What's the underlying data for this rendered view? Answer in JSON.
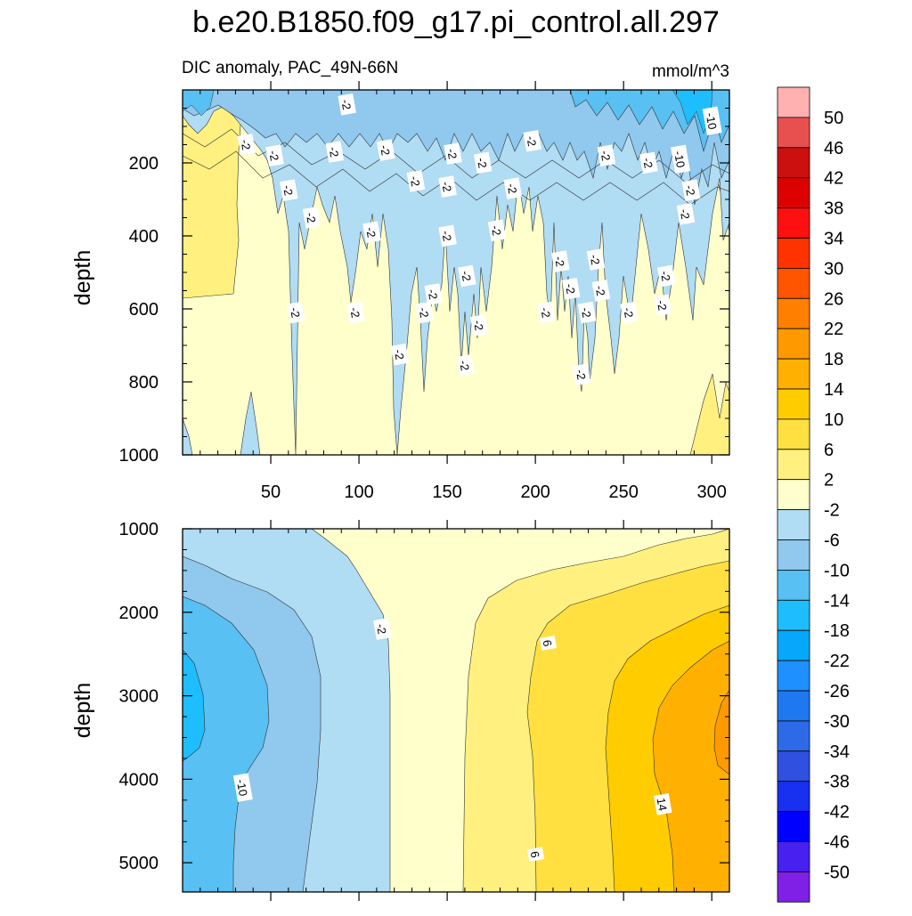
{
  "title": "b.e20.B1850.f09_g17.pi_control.all.297",
  "subtitle": "DIC anomaly, PAC_49N-66N",
  "units": "mmol/m^3",
  "chart_data": [
    {
      "type": "contour",
      "panel": "upper",
      "ylabel": "depth",
      "xlim": [
        0,
        310
      ],
      "ylim": [
        1000,
        0
      ],
      "xticks": [
        50,
        100,
        150,
        200,
        250,
        300
      ],
      "yticks": [
        200,
        400,
        600,
        800,
        1000
      ],
      "contour_labels": [
        {
          "text": "-2",
          "x": 93,
          "y": 40
        },
        {
          "text": "-2",
          "x": 36,
          "y": 150
        },
        {
          "text": "-2",
          "x": 52,
          "y": 180
        },
        {
          "text": "-2",
          "x": 86,
          "y": 170
        },
        {
          "text": "-2",
          "x": 115,
          "y": 165
        },
        {
          "text": "-2",
          "x": 153,
          "y": 175
        },
        {
          "text": "-2",
          "x": 170,
          "y": 200
        },
        {
          "text": "-2",
          "x": 198,
          "y": 140
        },
        {
          "text": "-2",
          "x": 240,
          "y": 180
        },
        {
          "text": "-2",
          "x": 264,
          "y": 200
        },
        {
          "text": "-2",
          "x": 132,
          "y": 250
        },
        {
          "text": "-2",
          "x": 150,
          "y": 265
        },
        {
          "text": "-2",
          "x": 187,
          "y": 270
        },
        {
          "text": "-2",
          "x": 60,
          "y": 275
        },
        {
          "text": "-2",
          "x": 73,
          "y": 350
        },
        {
          "text": "-2",
          "x": 107,
          "y": 390
        },
        {
          "text": "-2",
          "x": 150,
          "y": 400
        },
        {
          "text": "-2",
          "x": 178,
          "y": 385
        },
        {
          "text": "-2",
          "x": 214,
          "y": 470
        },
        {
          "text": "-2",
          "x": 234,
          "y": 465
        },
        {
          "text": "-2",
          "x": 161,
          "y": 510
        },
        {
          "text": "-2",
          "x": 142,
          "y": 560
        },
        {
          "text": "-2",
          "x": 220,
          "y": 545
        },
        {
          "text": "-2",
          "x": 237,
          "y": 550
        },
        {
          "text": "-2",
          "x": 274,
          "y": 510
        },
        {
          "text": "-2",
          "x": 64,
          "y": 610
        },
        {
          "text": "-2",
          "x": 98,
          "y": 610
        },
        {
          "text": "-2",
          "x": 137,
          "y": 610
        },
        {
          "text": "-2",
          "x": 206,
          "y": 610
        },
        {
          "text": "-2",
          "x": 229,
          "y": 610
        },
        {
          "text": "-2",
          "x": 253,
          "y": 610
        },
        {
          "text": "-2",
          "x": 272,
          "y": 590
        },
        {
          "text": "-2",
          "x": 168,
          "y": 645
        },
        {
          "text": "-2",
          "x": 123,
          "y": 725
        },
        {
          "text": "-2",
          "x": 160,
          "y": 755
        },
        {
          "text": "-2",
          "x": 226,
          "y": 780
        },
        {
          "text": "-10",
          "x": 282,
          "y": 190
        },
        {
          "text": "-2",
          "x": 288,
          "y": 275
        },
        {
          "text": "-2",
          "x": 285,
          "y": 340
        },
        {
          "text": "-10",
          "x": 300,
          "y": 85
        }
      ]
    },
    {
      "type": "contour",
      "panel": "lower",
      "ylabel": "depth",
      "xlim": [
        0,
        310
      ],
      "ylim": [
        5350,
        1000
      ],
      "yticks": [
        1000,
        2000,
        3000,
        4000,
        5000
      ],
      "contour_labels": [
        {
          "text": "-2",
          "x": 113,
          "y": 2200
        },
        {
          "text": "6",
          "x": 207,
          "y": 2370
        },
        {
          "text": "-10",
          "x": 34,
          "y": 4100
        },
        {
          "text": "14",
          "x": 272,
          "y": 4300
        },
        {
          "text": "6",
          "x": 200,
          "y": 4900
        }
      ]
    }
  ],
  "colorbar": {
    "labels": [
      "50",
      "46",
      "42",
      "38",
      "34",
      "30",
      "26",
      "22",
      "18",
      "14",
      "10",
      "6",
      "2",
      "-2",
      "-6",
      "-10",
      "-14",
      "-18",
      "-22",
      "-26",
      "-30",
      "-34",
      "-38",
      "-42",
      "-46",
      "-50"
    ],
    "colors": [
      "#FFB0B0",
      "#E85050",
      "#CC1010",
      "#DD0000",
      "#FF1010",
      "#FF3300",
      "#FF5500",
      "#FF8000",
      "#FF9900",
      "#FFB000",
      "#FFCC00",
      "#FFE040",
      "#FFF080",
      "#FFFFCC",
      "#B0DCF4",
      "#90C8EE",
      "#58C0F2",
      "#1EBEFE",
      "#05A8FA",
      "#1E90FF",
      "#1E78F0",
      "#2C6AE8",
      "#3050E0",
      "#1830F0",
      "#0000FF",
      "#4820F0",
      "#8020E6"
    ]
  }
}
